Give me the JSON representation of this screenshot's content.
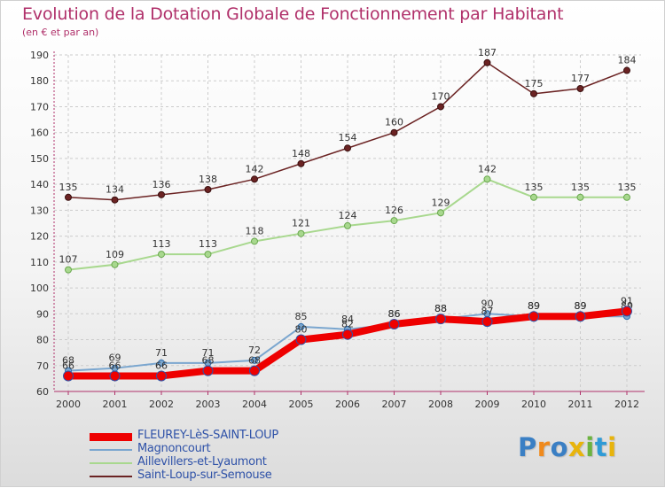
{
  "chart_data": {
    "type": "line",
    "title": "Evolution de la Dotation Globale de Fonctionnement par Habitant",
    "subtitle": "(en € et par an)",
    "categories": [
      "2000",
      "2001",
      "2002",
      "2003",
      "2004",
      "2005",
      "2006",
      "2007",
      "2008",
      "2009",
      "2010",
      "2011",
      "2012"
    ],
    "ylim": [
      60,
      190
    ],
    "yticks": [
      60,
      70,
      80,
      90,
      100,
      110,
      120,
      130,
      140,
      150,
      160,
      170,
      180,
      190
    ],
    "grid": true,
    "series": [
      {
        "name": "FLEUREY-LèS-SAINT-LOUP",
        "color": "#ee0000",
        "values": [
          66,
          66,
          66,
          68,
          68,
          80,
          82,
          86,
          88,
          87,
          89,
          89,
          91
        ]
      },
      {
        "name": "Magnoncourt",
        "color": "#7aa6cf",
        "values": [
          68,
          69,
          71,
          71,
          72,
          85,
          84,
          86,
          88,
          90,
          89,
          89,
          89
        ]
      },
      {
        "name": "Aillevillers-et-Lyaumont",
        "color": "#a8d88e",
        "values": [
          107,
          109,
          113,
          113,
          118,
          121,
          124,
          126,
          129,
          142,
          135,
          135,
          135
        ]
      },
      {
        "name": "Saint-Loup-sur-Semouse",
        "color": "#6b2323",
        "values": [
          135,
          134,
          136,
          138,
          142,
          148,
          154,
          160,
          170,
          187,
          175,
          177,
          184
        ]
      }
    ]
  },
  "legend": {
    "items": [
      {
        "label": "FLEUREY-LèS-SAINT-LOUP",
        "color": "#ee0000"
      },
      {
        "label": "Magnoncourt",
        "color": "#7aa6cf"
      },
      {
        "label": "Aillevillers-et-Lyaumont",
        "color": "#a8d88e"
      },
      {
        "label": "Saint-Loup-sur-Semouse",
        "color": "#6b2323"
      }
    ]
  },
  "logo": {
    "text": "Proxiti"
  }
}
